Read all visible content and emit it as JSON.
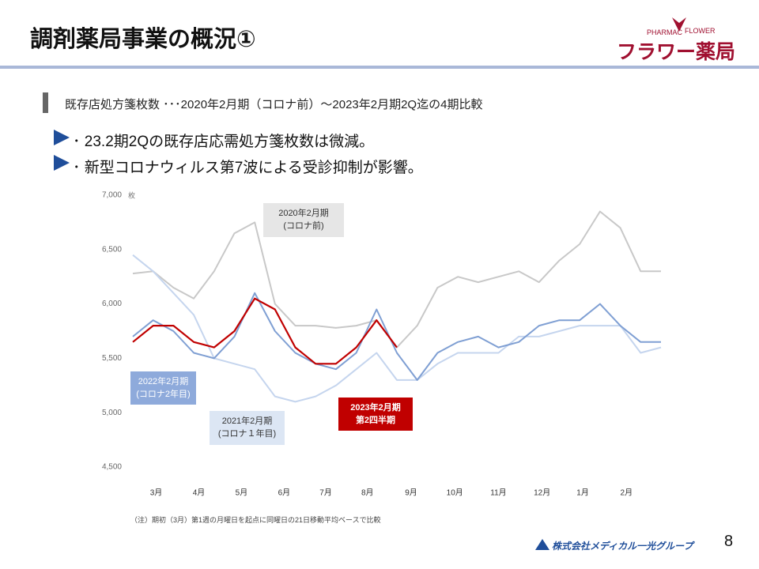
{
  "header": {
    "title": "調剤薬局事業の概況①",
    "logo_small_left": "PHARMAC",
    "logo_small_right": "FLOWER",
    "logo": "フラワー薬局"
  },
  "subtitle": "既存店処方箋枚数 ･･･2020年2月期（コロナ前）～2023年2月期2Q迄の4期比較",
  "bullets": [
    "23.2期2Qの既存店応需処方箋枚数は微減。",
    "新型コロナウィルス第7波による受診抑制が影響。"
  ],
  "note": "（注）期初（3月）第1週の月曜日を起点に同曜日の21日移動平均ベースで比較",
  "footer": {
    "company": "株式会社メディカル一光グループ",
    "page": "8"
  },
  "chart_data": {
    "type": "line",
    "y_unit": "枚",
    "x": [
      0,
      2,
      4,
      6,
      8,
      10,
      12,
      14,
      16,
      18,
      20,
      22,
      24,
      26,
      28,
      30,
      32,
      34,
      36,
      38,
      40,
      42,
      44,
      46,
      48,
      50,
      52
    ],
    "xlim": [
      0,
      52
    ],
    "xticks": [
      {
        "value": 2.3,
        "label": "3月"
      },
      {
        "value": 6.5,
        "label": "4月"
      },
      {
        "value": 10.7,
        "label": "5月"
      },
      {
        "value": 14.9,
        "label": "6月"
      },
      {
        "value": 19,
        "label": "7月"
      },
      {
        "value": 23.1,
        "label": "8月"
      },
      {
        "value": 27.4,
        "label": "9月"
      },
      {
        "value": 31.7,
        "label": "10月"
      },
      {
        "value": 36,
        "label": "11月"
      },
      {
        "value": 40.3,
        "label": "12月"
      },
      {
        "value": 44.3,
        "label": "1月"
      },
      {
        "value": 48.6,
        "label": "2月"
      }
    ],
    "ylim": [
      4500,
      7000
    ],
    "yticks": [
      {
        "value": 4500,
        "label": "4,500"
      },
      {
        "value": 5000,
        "label": "5,000"
      },
      {
        "value": 5500,
        "label": "5,500"
      },
      {
        "value": 6000,
        "label": "6,000"
      },
      {
        "value": 6500,
        "label": "6,500"
      },
      {
        "value": 7000,
        "label": "7,000"
      }
    ],
    "grid": false,
    "series": [
      {
        "name": "2020年2月期",
        "note": "(コロナ前)",
        "color": "#c8c8c8",
        "values": [
          6280,
          6300,
          6150,
          6050,
          6300,
          6650,
          6750,
          6000,
          5800,
          5800,
          5780,
          5800,
          5850,
          5600,
          5800,
          6150,
          6250,
          6200,
          6250,
          6300,
          6200,
          6400,
          6550,
          6850,
          6700,
          6300,
          6300
        ]
      },
      {
        "name": "2021年2月期",
        "note": "(コロナ１年目)",
        "color": "#c5d5ee",
        "values": [
          6450,
          6300,
          6100,
          5900,
          5500,
          5450,
          5400,
          5150,
          5100,
          5150,
          5250,
          5400,
          5550,
          5300,
          5300,
          5450,
          5550,
          5550,
          5550,
          5700,
          5700,
          5750,
          5800,
          5800,
          5800,
          5550,
          5600
        ]
      },
      {
        "name": "2022年2月期",
        "note": "(コロナ2年目)",
        "color": "#7f9fd3",
        "values": [
          5700,
          5850,
          5750,
          5550,
          5500,
          5700,
          6100,
          5750,
          5550,
          5450,
          5400,
          5550,
          5950,
          5550,
          5300,
          5550,
          5650,
          5700,
          5600,
          5650,
          5800,
          5850,
          5850,
          6000,
          5800,
          5650,
          5650
        ]
      },
      {
        "name": "2023年2月期",
        "note": "第2四半期",
        "color": "#c00000",
        "values": [
          5650,
          5800,
          5800,
          5650,
          5600,
          5750,
          6050,
          5950,
          5600,
          5450,
          5450,
          5600,
          5850,
          5600,
          null,
          null,
          null,
          null,
          null,
          null,
          null,
          null,
          null,
          null,
          null,
          null,
          null
        ]
      }
    ]
  }
}
